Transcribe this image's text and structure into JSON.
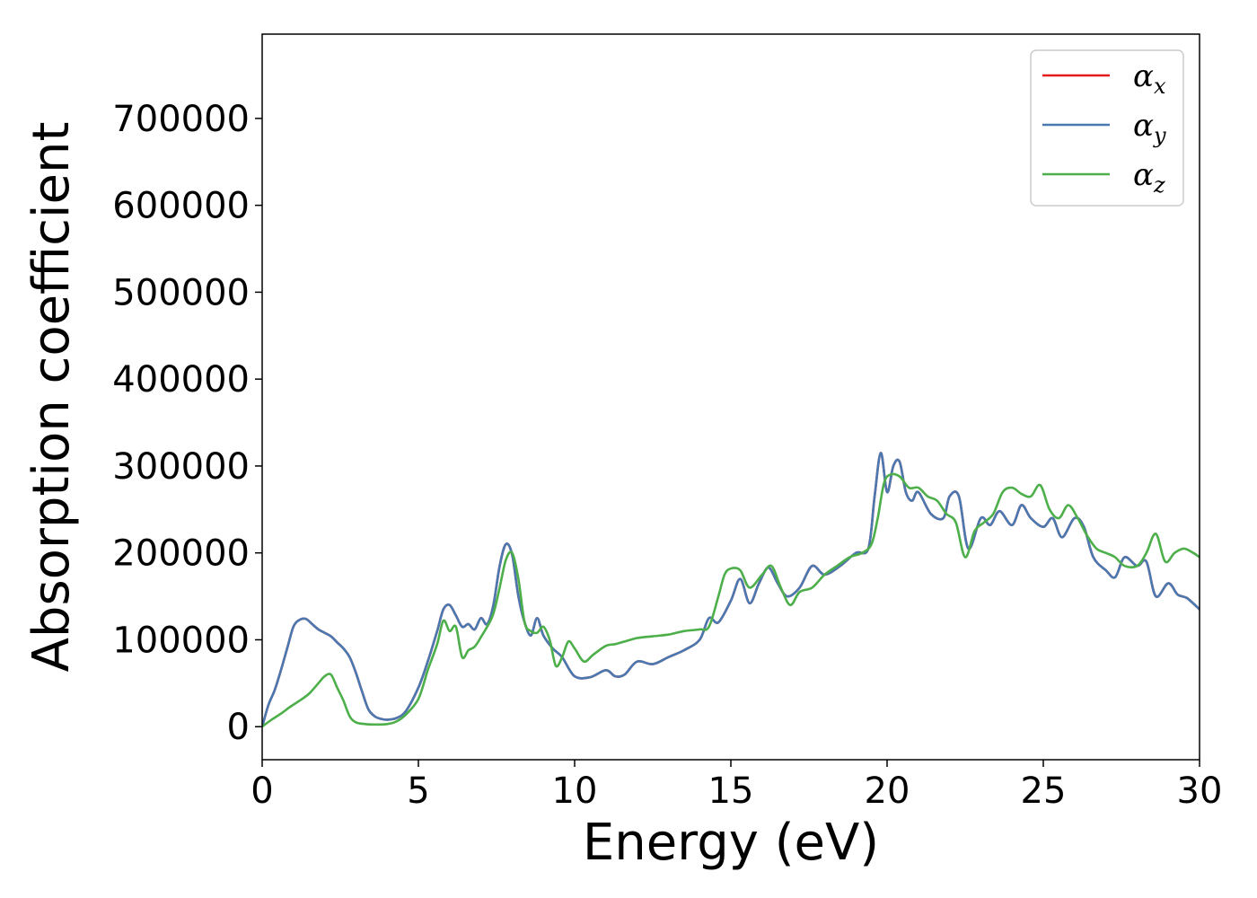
{
  "chart_data": {
    "type": "line",
    "xlabel": "Energy (eV)",
    "ylabel": "Absorption coefficient",
    "xlim": [
      0,
      30
    ],
    "ylim": [
      -38000,
      797000
    ],
    "xticks": [
      0,
      5,
      10,
      15,
      20,
      25,
      30
    ],
    "xtick_labels": [
      "0",
      "5",
      "10",
      "15",
      "20",
      "25",
      "30"
    ],
    "yticks": [
      0,
      100000,
      200000,
      300000,
      400000,
      500000,
      600000,
      700000
    ],
    "ytick_labels": [
      "0",
      "100000",
      "200000",
      "300000",
      "400000",
      "500000",
      "600000",
      "700000"
    ],
    "grid": false,
    "legend": {
      "placement": "top-right",
      "entries": [
        {
          "base": "α",
          "sub": "x",
          "color": "#e41a1c"
        },
        {
          "base": "α",
          "sub": "y",
          "color": "#4a78b0"
        },
        {
          "base": "α",
          "sub": "z",
          "color": "#4daf4a"
        }
      ]
    },
    "series": [
      {
        "color": "#e41a1c",
        "x": [
          0,
          0.2,
          0.4,
          0.6,
          0.8,
          1.0,
          1.2,
          1.4,
          1.6,
          1.8,
          2.0,
          2.2,
          2.4,
          2.6,
          2.8,
          3.0,
          3.2,
          3.4,
          3.6,
          3.8,
          4.0,
          4.3,
          4.6,
          5.0,
          5.3,
          5.6,
          5.8,
          6.0,
          6.2,
          6.4,
          6.6,
          6.8,
          7.0,
          7.2,
          7.4,
          7.6,
          7.8,
          8.0,
          8.2,
          8.4,
          8.6,
          8.8,
          9.0,
          9.3,
          9.6,
          10.0,
          10.5,
          11.0,
          11.3,
          11.6,
          12.0,
          12.5,
          13.0,
          13.5,
          14.0,
          14.3,
          14.6,
          15.0,
          15.3,
          15.6,
          15.9,
          16.2,
          16.5,
          16.8,
          17.2,
          17.6,
          18.0,
          18.5,
          19.0,
          19.4,
          19.6,
          19.8,
          20.0,
          20.2,
          20.4,
          20.6,
          20.8,
          21.0,
          21.4,
          21.8,
          22.0,
          22.3,
          22.6,
          23.0,
          23.3,
          23.6,
          24.0,
          24.3,
          24.6,
          25.0,
          25.3,
          25.6,
          26.0,
          26.3,
          26.6,
          27.0,
          27.3,
          27.6,
          28.0,
          28.3,
          28.6,
          29.0,
          29.3,
          29.6,
          30.0
        ],
        "y": [
          0,
          25000,
          42000,
          65000,
          90000,
          115000,
          123000,
          124000,
          118000,
          112000,
          108000,
          104000,
          97000,
          90000,
          80000,
          62000,
          40000,
          20000,
          12000,
          9000,
          8000,
          10000,
          18000,
          45000,
          75000,
          110000,
          135000,
          140000,
          128000,
          115000,
          118000,
          112000,
          125000,
          118000,
          140000,
          185000,
          210000,
          198000,
          150000,
          120000,
          105000,
          125000,
          105000,
          90000,
          80000,
          58000,
          57000,
          65000,
          58000,
          60000,
          75000,
          72000,
          80000,
          88000,
          100000,
          125000,
          120000,
          145000,
          170000,
          142000,
          165000,
          183000,
          165000,
          150000,
          160000,
          185000,
          175000,
          185000,
          200000,
          205000,
          265000,
          315000,
          270000,
          300000,
          305000,
          270000,
          260000,
          270000,
          245000,
          240000,
          265000,
          265000,
          205000,
          240000,
          232000,
          248000,
          232000,
          255000,
          240000,
          230000,
          240000,
          218000,
          240000,
          230000,
          195000,
          180000,
          172000,
          195000,
          185000,
          190000,
          150000,
          165000,
          152000,
          148000,
          135000
        ]
      },
      {
        "color": "#4a78b0",
        "x": [
          0,
          0.2,
          0.4,
          0.6,
          0.8,
          1.0,
          1.2,
          1.4,
          1.6,
          1.8,
          2.0,
          2.2,
          2.4,
          2.6,
          2.8,
          3.0,
          3.2,
          3.4,
          3.6,
          3.8,
          4.0,
          4.3,
          4.6,
          5.0,
          5.3,
          5.6,
          5.8,
          6.0,
          6.2,
          6.4,
          6.6,
          6.8,
          7.0,
          7.2,
          7.4,
          7.6,
          7.8,
          8.0,
          8.2,
          8.4,
          8.6,
          8.8,
          9.0,
          9.3,
          9.6,
          10.0,
          10.5,
          11.0,
          11.3,
          11.6,
          12.0,
          12.5,
          13.0,
          13.5,
          14.0,
          14.3,
          14.6,
          15.0,
          15.3,
          15.6,
          15.9,
          16.2,
          16.5,
          16.8,
          17.2,
          17.6,
          18.0,
          18.5,
          19.0,
          19.4,
          19.6,
          19.8,
          20.0,
          20.2,
          20.4,
          20.6,
          20.8,
          21.0,
          21.4,
          21.8,
          22.0,
          22.3,
          22.6,
          23.0,
          23.3,
          23.6,
          24.0,
          24.3,
          24.6,
          25.0,
          25.3,
          25.6,
          26.0,
          26.3,
          26.6,
          27.0,
          27.3,
          27.6,
          28.0,
          28.3,
          28.6,
          29.0,
          29.3,
          29.6,
          30.0
        ],
        "y": [
          0,
          25000,
          42000,
          65000,
          90000,
          115000,
          123000,
          124000,
          118000,
          112000,
          108000,
          104000,
          97000,
          90000,
          80000,
          62000,
          40000,
          20000,
          12000,
          9000,
          8000,
          10000,
          18000,
          45000,
          75000,
          110000,
          135000,
          140000,
          128000,
          115000,
          118000,
          112000,
          125000,
          118000,
          140000,
          185000,
          210000,
          198000,
          150000,
          120000,
          105000,
          125000,
          105000,
          90000,
          80000,
          58000,
          57000,
          65000,
          58000,
          60000,
          75000,
          72000,
          80000,
          88000,
          100000,
          125000,
          120000,
          145000,
          170000,
          142000,
          165000,
          183000,
          165000,
          150000,
          160000,
          185000,
          175000,
          185000,
          200000,
          205000,
          265000,
          315000,
          270000,
          300000,
          305000,
          270000,
          260000,
          270000,
          245000,
          240000,
          265000,
          265000,
          205000,
          240000,
          232000,
          248000,
          232000,
          255000,
          240000,
          230000,
          240000,
          218000,
          240000,
          230000,
          195000,
          180000,
          172000,
          195000,
          185000,
          190000,
          150000,
          165000,
          152000,
          148000,
          135000
        ]
      },
      {
        "color": "#4daf4a",
        "x": [
          0,
          0.3,
          0.6,
          0.9,
          1.2,
          1.5,
          1.8,
          2.0,
          2.2,
          2.4,
          2.6,
          2.8,
          3.0,
          3.3,
          3.6,
          4.0,
          4.3,
          4.6,
          5.0,
          5.3,
          5.6,
          5.8,
          6.0,
          6.2,
          6.4,
          6.6,
          6.8,
          7.0,
          7.2,
          7.4,
          7.6,
          7.8,
          8.0,
          8.2,
          8.4,
          8.6,
          8.8,
          9.0,
          9.2,
          9.4,
          9.6,
          9.8,
          10.0,
          10.3,
          10.6,
          11.0,
          11.3,
          11.6,
          12.0,
          12.5,
          13.0,
          13.5,
          14.0,
          14.3,
          14.6,
          14.8,
          15.0,
          15.3,
          15.6,
          16.0,
          16.3,
          16.6,
          16.9,
          17.2,
          17.6,
          18.0,
          18.4,
          18.8,
          19.2,
          19.5,
          19.7,
          19.9,
          20.1,
          20.4,
          20.7,
          21.0,
          21.3,
          21.6,
          21.9,
          22.2,
          22.5,
          22.8,
          23.1,
          23.4,
          23.7,
          24.0,
          24.3,
          24.6,
          24.9,
          25.2,
          25.5,
          25.8,
          26.1,
          26.4,
          26.7,
          27.0,
          27.3,
          27.6,
          28.0,
          28.3,
          28.6,
          28.9,
          29.2,
          29.5,
          29.8,
          30.0
        ],
        "y": [
          0,
          8000,
          15000,
          23000,
          30000,
          38000,
          50000,
          58000,
          60000,
          45000,
          30000,
          12000,
          5000,
          3000,
          2500,
          3000,
          6000,
          14000,
          32000,
          65000,
          95000,
          122000,
          110000,
          115000,
          80000,
          88000,
          92000,
          103000,
          115000,
          130000,
          160000,
          192000,
          200000,
          170000,
          120000,
          110000,
          108000,
          115000,
          100000,
          70000,
          80000,
          98000,
          90000,
          75000,
          83000,
          93000,
          95000,
          98000,
          102000,
          104000,
          106000,
          110000,
          112000,
          115000,
          150000,
          175000,
          182000,
          180000,
          160000,
          175000,
          185000,
          160000,
          140000,
          155000,
          160000,
          175000,
          185000,
          195000,
          200000,
          210000,
          240000,
          280000,
          290000,
          288000,
          275000,
          275000,
          265000,
          260000,
          245000,
          235000,
          195000,
          225000,
          235000,
          245000,
          270000,
          275000,
          268000,
          265000,
          278000,
          250000,
          240000,
          255000,
          240000,
          220000,
          205000,
          200000,
          195000,
          185000,
          185000,
          200000,
          222000,
          190000,
          200000,
          205000,
          200000,
          195000
        ]
      }
    ]
  }
}
